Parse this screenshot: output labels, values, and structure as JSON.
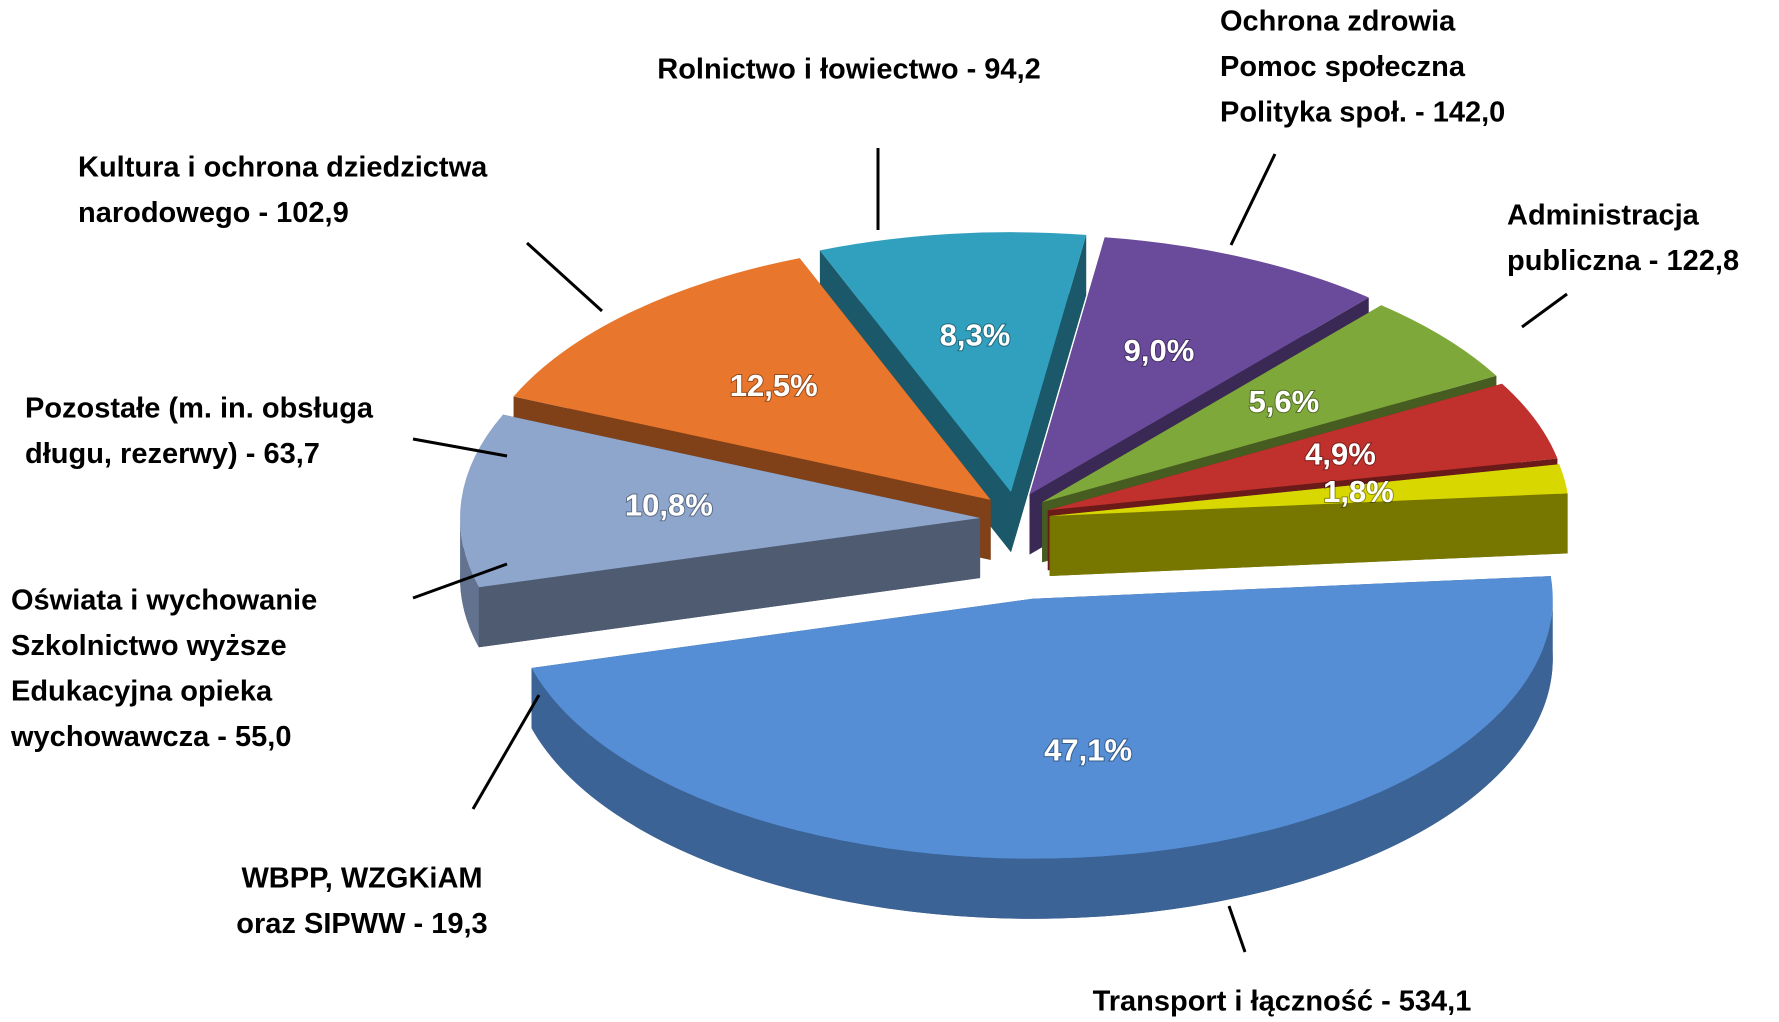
{
  "chart_data": {
    "type": "pie3d",
    "categories": [
      [
        "Transport i łączność - 534,1"
      ],
      [
        "Administracja",
        "publiczna - 122,8"
      ],
      [
        "Ochrona zdrowia",
        "Pomoc społeczna",
        "Polityka społ. - 142,0"
      ],
      [
        "Rolnictwo i łowiectwo - 94,2"
      ],
      [
        "Kultura i ochrona dziedzictwa",
        "narodowego - 102,9"
      ],
      [
        "Pozostałe (m. in. obsługa",
        "długu, rezerwy) - 63,7"
      ],
      [
        "Oświata i wychowanie",
        "Szkolnictwo wyższe",
        "Edukacyjna opieka",
        "wychowawcza - 55,0"
      ],
      [
        "WBPP, WZGKiAM",
        "oraz SIPWW - 19,3"
      ]
    ],
    "values": [
      47.1,
      10.8,
      12.5,
      8.3,
      9.0,
      5.6,
      4.9,
      1.8
    ],
    "value_labels": [
      "47,1%",
      "10,8%",
      "12,5%",
      "8,3%",
      "9,0%",
      "5,6%",
      "4,9%",
      "1,8%"
    ],
    "colors": [
      "#558ed5",
      "#8ea5cc",
      "#e8762c",
      "#31a0be",
      "#6a4a9a",
      "#7fa83a",
      "#c0302c",
      "#d8d800"
    ]
  }
}
